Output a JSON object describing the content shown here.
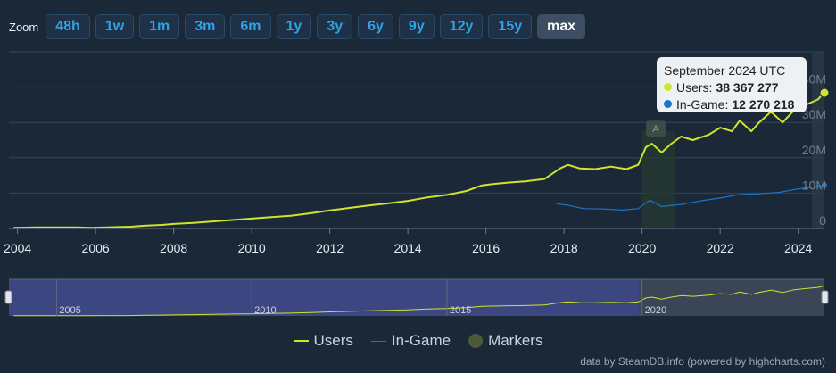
{
  "zoom": {
    "label": "Zoom",
    "buttons": [
      "48h",
      "1w",
      "1m",
      "3m",
      "6m",
      "1y",
      "3y",
      "6y",
      "9y",
      "12y",
      "15y",
      "max"
    ],
    "active": "max"
  },
  "tooltip": {
    "date": "September 2024 UTC",
    "users_label": "Users:",
    "users_value": "38 367 277",
    "ingame_label": "In-Game:",
    "ingame_value": "12 270 218"
  },
  "legend": {
    "users": "Users",
    "ingame": "In-Game",
    "markers": "Markers"
  },
  "credits": "data by SteamDB.info (powered by highcharts.com)",
  "colors": {
    "background": "#1b2838",
    "users": "#cde52c",
    "ingame": "#1a73c9",
    "markers": "#4d5a3a",
    "active_button": "#3d4e63"
  },
  "chart_data": {
    "type": "line",
    "x_ticks": [
      "2004",
      "2006",
      "2008",
      "2010",
      "2012",
      "2014",
      "2016",
      "2018",
      "2020",
      "2022",
      "2024"
    ],
    "y_ticks": [
      "0",
      "10M",
      "20M",
      "30M",
      "40M"
    ],
    "ylim": [
      0,
      50000000
    ],
    "navigator_ticks": [
      "2005",
      "2010",
      "2015",
      "2020"
    ],
    "marker_label": "A",
    "series": [
      {
        "name": "Users",
        "x": [
          2003.9,
          2004.5,
          2005.0,
          2005.5,
          2005.9,
          2006.9,
          2007.3,
          2007.7,
          2008.0,
          2008.5,
          2009.0,
          2009.5,
          2010.0,
          2010.5,
          2011.0,
          2011.5,
          2012.0,
          2012.5,
          2013.0,
          2013.5,
          2014.0,
          2014.5,
          2015.0,
          2015.5,
          2015.9,
          2016.2,
          2016.6,
          2017.0,
          2017.5,
          2017.9,
          2018.1,
          2018.4,
          2018.8,
          2019.2,
          2019.6,
          2019.9,
          2020.1,
          2020.25,
          2020.5,
          2020.75,
          2021.0,
          2021.3,
          2021.7,
          2022.0,
          2022.3,
          2022.5,
          2022.8,
          2023.0,
          2023.3,
          2023.6,
          2023.9,
          2024.2,
          2024.5,
          2024.67
        ],
        "y": [
          0.2,
          0.3,
          0.3,
          0.3,
          0.2,
          0.5,
          0.8,
          1.0,
          1.3,
          1.6,
          2.0,
          2.4,
          2.8,
          3.2,
          3.6,
          4.3,
          5.1,
          5.8,
          6.5,
          7.1,
          7.8,
          8.8,
          9.5,
          10.6,
          12.2,
          12.6,
          13.0,
          13.3,
          14.0,
          17.0,
          18.0,
          17.0,
          16.8,
          17.5,
          16.8,
          18.0,
          23.0,
          24.0,
          21.5,
          24.0,
          26.0,
          25.0,
          26.5,
          28.5,
          27.5,
          30.5,
          27.5,
          30.0,
          33.0,
          30.0,
          33.5,
          35.0,
          36.5,
          38.37
        ]
      },
      {
        "name": "In-Game",
        "x": [
          2017.8,
          2018.1,
          2018.5,
          2019.0,
          2019.5,
          2019.9,
          2020.2,
          2020.5,
          2021.0,
          2021.5,
          2022.0,
          2022.5,
          2023.0,
          2023.5,
          2024.0,
          2024.3,
          2024.67
        ],
        "y": [
          7.0,
          6.6,
          5.6,
          5.5,
          5.2,
          5.6,
          8.0,
          6.2,
          6.8,
          7.8,
          8.6,
          9.6,
          9.8,
          10.2,
          11.2,
          11.6,
          12.27
        ]
      }
    ]
  }
}
